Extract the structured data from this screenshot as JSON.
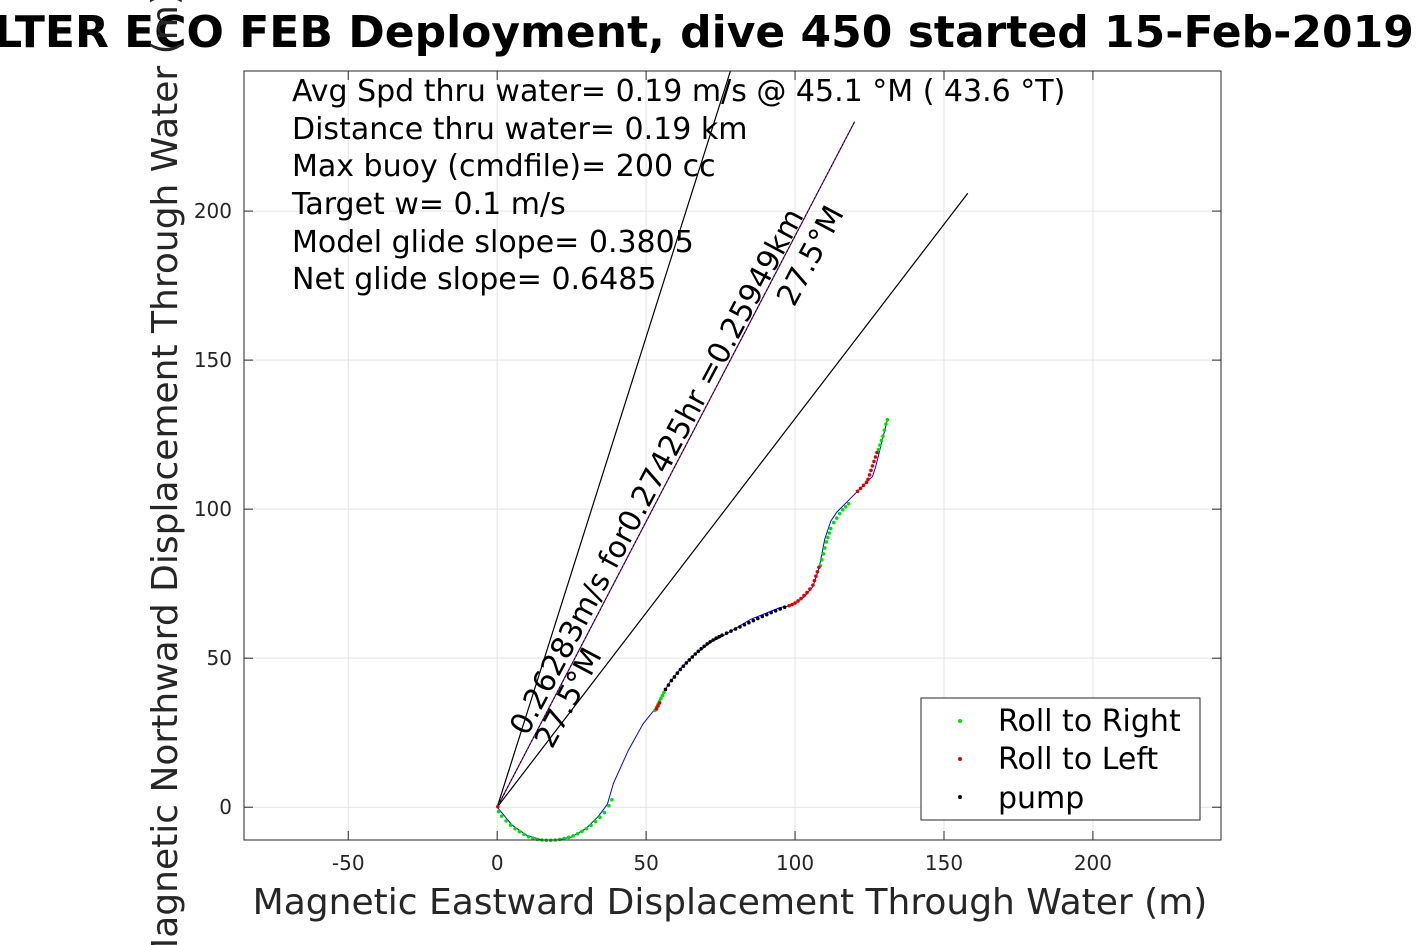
{
  "chart_data": {
    "type": "scatter",
    "title": "LTER ECO FEB Deployment, dive 450 started 15-Feb-2019",
    "xlabel": "Magnetic Eastward Displacement Through Water (m)",
    "ylabel": "Magnetic Northward Displacement Through Water (m)",
    "xlim": [
      -85,
      243
    ],
    "ylim": [
      -11,
      247
    ],
    "xticks": [
      -50,
      0,
      50,
      100,
      150,
      200
    ],
    "yticks": [
      0,
      50,
      100,
      150,
      200
    ],
    "grid": true,
    "legend_position": "bottom-right",
    "info_lines": [
      "Avg Spd thru water=  0.19 m/s @  45.1 °M ( 43.6 °T)",
      "Distance thru water=  0.19 km",
      "Max buoy (cmdfile)= 200 cc",
      "Target w= 0.1 m/s",
      "Model glide slope= 0.3805",
      "Net glide slope= 0.6485"
    ],
    "annotations": {
      "speed_text": "0.26283m/s for0.27425hr =0.25949km",
      "heading_top": "27.5°M",
      "heading_bottom": "27.5°M"
    },
    "reference_lines": [
      {
        "x": [
          0,
          78.3
        ],
        "y": [
          0,
          247
        ]
      },
      {
        "x": [
          0,
          120
        ],
        "y": [
          0,
          230
        ]
      },
      {
        "x": [
          0,
          158
        ],
        "y": [
          0,
          206
        ]
      }
    ],
    "track": {
      "x": [
        0,
        5,
        10,
        15,
        20,
        25,
        30,
        34,
        37,
        39,
        44,
        49,
        53,
        55,
        58,
        62,
        66,
        70,
        72,
        75,
        80,
        85,
        90,
        95,
        98,
        100,
        103,
        106,
        108,
        109,
        110,
        111,
        112,
        114,
        116,
        118,
        120,
        122,
        124,
        126,
        127,
        128,
        129,
        130,
        131
      ],
      "y": [
        0,
        -6,
        -9.5,
        -11,
        -11,
        -10,
        -7,
        -3,
        1,
        8,
        19,
        28,
        33,
        37,
        42,
        47,
        51,
        54,
        55.5,
        57,
        60,
        63,
        65,
        67,
        67.5,
        68.5,
        70.5,
        74,
        80,
        85,
        90,
        93,
        96,
        99,
        101,
        103,
        105,
        107,
        109,
        111,
        114,
        118,
        122,
        126,
        130
      ]
    },
    "series": [
      {
        "name": "Roll to Right",
        "color": "#00e000",
        "x": [
          0.5,
          1.5,
          3,
          4.5,
          6,
          7.5,
          9,
          10.5,
          12,
          13.5,
          15,
          16.5,
          18,
          19.5,
          21,
          22.5,
          24,
          25.5,
          27,
          28.5,
          30,
          31.5,
          33,
          34.5,
          36,
          37.5,
          38.5,
          53,
          53.5,
          54,
          54.5,
          55,
          55.5,
          56,
          108.5,
          109,
          109.5,
          110,
          110.5,
          111,
          111.5,
          112,
          113,
          114,
          115,
          116,
          117,
          118,
          128,
          128.5,
          129,
          129.5,
          130,
          130.5,
          131
        ],
        "y": [
          -1.5,
          -3,
          -4.6,
          -6,
          -7.2,
          -8.2,
          -9.1,
          -9.9,
          -10.4,
          -10.8,
          -11,
          -11.1,
          -11.1,
          -11,
          -10.8,
          -10.5,
          -10.1,
          -9.6,
          -8.9,
          -8.1,
          -7.2,
          -6.1,
          -4.8,
          -3.4,
          -1.8,
          0.5,
          2.5,
          32.5,
          33.5,
          34.5,
          35.5,
          36.5,
          37.5,
          38.5,
          81,
          83,
          85,
          87,
          89,
          90.5,
          92,
          93.5,
          95.5,
          97,
          98.5,
          99.8,
          100.8,
          101.8,
          120,
          121.5,
          123,
          124.5,
          126.5,
          128.5,
          130
        ]
      },
      {
        "name": "Roll to Left",
        "color": "#e00000",
        "x": [
          0.2,
          53.5,
          54,
          54.5,
          98,
          99,
          100,
          101,
          102,
          103,
          104,
          105,
          106,
          106.5,
          107,
          107.5,
          108,
          121,
          122,
          123,
          124,
          124.5,
          125,
          125.5,
          126,
          126.5,
          127,
          127.5
        ],
        "y": [
          0.2,
          33,
          34,
          35,
          67.6,
          68,
          68.5,
          69.2,
          70,
          71,
          72,
          73.2,
          74.5,
          76,
          77.5,
          79,
          80.5,
          106,
          107,
          108,
          109,
          110,
          111.5,
          113,
          114.5,
          116,
          117.5,
          119
        ]
      },
      {
        "name": "pump",
        "color": "#000000",
        "x": [
          56.5,
          57.5,
          58.5,
          59.5,
          60.5,
          61.5,
          62.5,
          63.5,
          64.5,
          65.5,
          66.5,
          67.5,
          68.5,
          69.5,
          70.5,
          71.5,
          72.5,
          73.5,
          74.5,
          75.5,
          77,
          78.5,
          80,
          81.5,
          83,
          84.5,
          86,
          87.5,
          89,
          90.5,
          92,
          93.5,
          95,
          96.5
        ],
        "y": [
          39.5,
          41,
          42.5,
          43.7,
          45,
          46.2,
          47.3,
          48.4,
          49.4,
          50.4,
          51.4,
          52.3,
          53.2,
          54,
          54.8,
          55.5,
          56.1,
          56.7,
          57.2,
          57.7,
          58.4,
          59.1,
          59.8,
          60.5,
          61.2,
          61.9,
          62.6,
          63.3,
          64,
          64.6,
          65.3,
          65.9,
          66.5,
          67.1
        ]
      }
    ]
  }
}
